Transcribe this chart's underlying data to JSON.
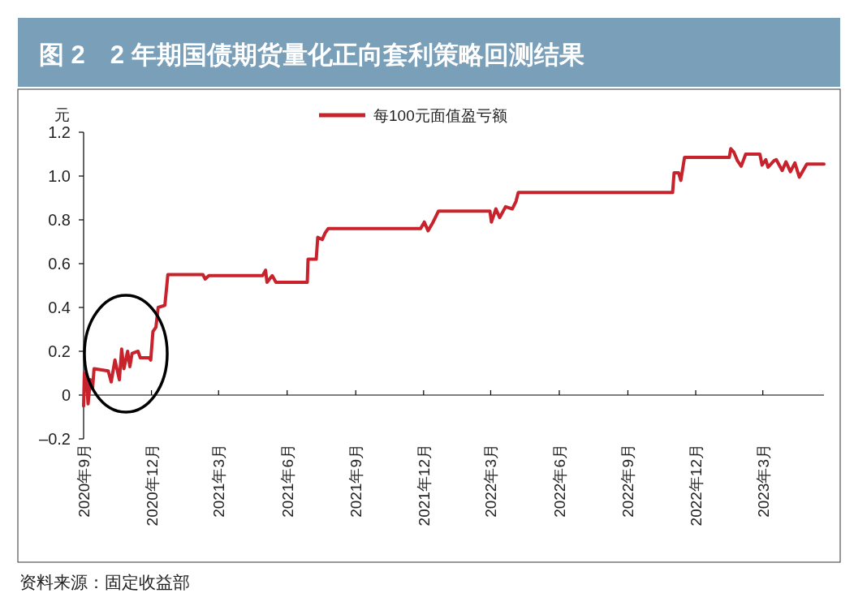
{
  "chart_data": {
    "type": "line",
    "title": "图 2　2 年期国债期货量化正向套利策略回测结果",
    "ylabel": "元",
    "legend": "top",
    "x": [
      "2020-09-01",
      "2020-09-02",
      "2020-09-05",
      "2020-09-07",
      "2020-09-10",
      "2020-09-13",
      "2020-09-15",
      "2020-10-04",
      "2020-10-08",
      "2020-10-13",
      "2020-10-19",
      "2020-10-22",
      "2020-10-25",
      "2020-10-30",
      "2020-11-02",
      "2020-11-05",
      "2020-11-13",
      "2020-11-16",
      "2020-11-28",
      "2020-11-30",
      "2020-12-03",
      "2020-12-07",
      "2020-12-10",
      "2020-12-19",
      "2020-12-23",
      "2021-02-08",
      "2021-02-11",
      "2021-02-16",
      "2021-04-29",
      "2021-05-03",
      "2021-05-05",
      "2021-05-12",
      "2021-05-17",
      "2021-06-28",
      "2021-06-29",
      "2021-07-10",
      "2021-07-12",
      "2021-07-18",
      "2021-07-22",
      "2021-07-26",
      "2021-11-27",
      "2021-12-02",
      "2021-12-07",
      "2021-12-13",
      "2021-12-21",
      "2022-02-28",
      "2022-03-02",
      "2022-03-08",
      "2022-03-13",
      "2022-03-21",
      "2022-03-30",
      "2022-04-04",
      "2022-04-07",
      "2022-10-31",
      "2022-11-02",
      "2022-11-08",
      "2022-11-11",
      "2022-11-16",
      "2023-01-15",
      "2023-01-17",
      "2023-01-21",
      "2023-01-26",
      "2023-01-31",
      "2023-02-06",
      "2023-02-25",
      "2023-02-28",
      "2023-03-05",
      "2023-03-08",
      "2023-03-16",
      "2023-03-19",
      "2023-03-27",
      "2023-04-01",
      "2023-04-07",
      "2023-04-13",
      "2023-04-19",
      "2023-04-24",
      "2023-04-29",
      "2023-05-22"
    ],
    "series": [
      {
        "name": "每100元面值盈亏额",
        "color": "#c8232c",
        "values": [
          -0.05,
          0.1,
          0.06,
          -0.04,
          0.07,
          0.03,
          0.12,
          0.11,
          0.06,
          0.16,
          0.07,
          0.21,
          0.12,
          0.2,
          0.13,
          0.19,
          0.2,
          0.17,
          0.17,
          0.16,
          0.29,
          0.31,
          0.4,
          0.41,
          0.55,
          0.55,
          0.53,
          0.545,
          0.545,
          0.57,
          0.515,
          0.545,
          0.515,
          0.515,
          0.62,
          0.62,
          0.72,
          0.71,
          0.74,
          0.76,
          0.76,
          0.79,
          0.75,
          0.785,
          0.84,
          0.84,
          0.79,
          0.85,
          0.81,
          0.86,
          0.85,
          0.885,
          0.925,
          0.925,
          1.015,
          1.015,
          0.98,
          1.085,
          1.085,
          1.125,
          1.11,
          1.07,
          1.045,
          1.1,
          1.1,
          1.05,
          1.075,
          1.04,
          1.07,
          1.075,
          1.025,
          1.065,
          1.02,
          1.06,
          0.995,
          1.025,
          1.055,
          1.055
        ]
      }
    ],
    "xlim": [
      "2020-09-01",
      "2023-05-22"
    ],
    "xticks": [
      {
        "value": "2020-09-01",
        "label": "2020年9月"
      },
      {
        "value": "2020-12-01",
        "label": "2020年12月"
      },
      {
        "value": "2021-03-01",
        "label": "2021年3月"
      },
      {
        "value": "2021-06-01",
        "label": "2021年6月"
      },
      {
        "value": "2021-09-01",
        "label": "2021年9月"
      },
      {
        "value": "2021-12-01",
        "label": "2021年12月"
      },
      {
        "value": "2022-03-01",
        "label": "2022年3月"
      },
      {
        "value": "2022-06-01",
        "label": "2022年6月"
      },
      {
        "value": "2022-09-01",
        "label": "2022年9月"
      },
      {
        "value": "2022-12-01",
        "label": "2022年12月"
      },
      {
        "value": "2023-03-01",
        "label": "2023年3月"
      }
    ],
    "ylim": [
      -0.2,
      1.2
    ],
    "yticks": [
      {
        "value": -0.2,
        "label": "–0.2"
      },
      0,
      0.2,
      0.4,
      0.6,
      0.8,
      {
        "value": 1.0,
        "label": "1.0"
      },
      1.2
    ],
    "annotations": [
      "资料来源：固定收益部"
    ]
  }
}
